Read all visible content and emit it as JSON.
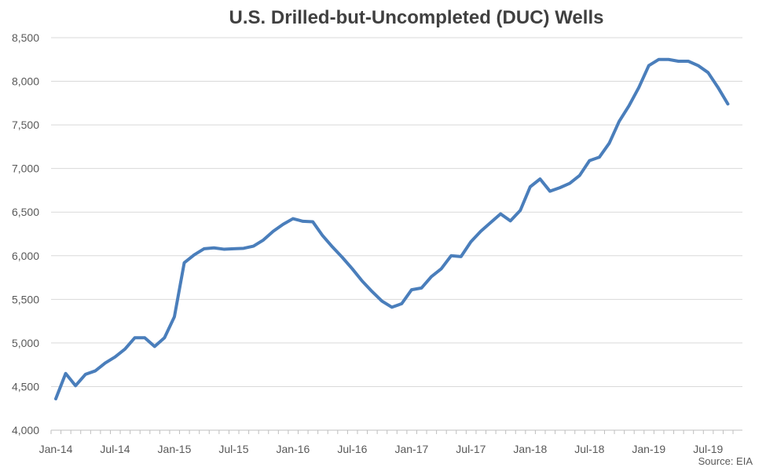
{
  "chart_data": {
    "type": "line",
    "title": "U.S. Drilled-but-Uncompleted (DUC) Wells",
    "xlabel": "",
    "ylabel": "",
    "ylim": [
      4000,
      8500
    ],
    "y_ticks": [
      4000,
      4500,
      5000,
      5500,
      6000,
      6500,
      7000,
      7500,
      8000,
      8500
    ],
    "y_tick_labels": [
      "4,000",
      "4,500",
      "5,000",
      "5,500",
      "6,000",
      "6,500",
      "7,000",
      "7,500",
      "8,000",
      "8,500"
    ],
    "x_tick_labels": [
      "Jan-14",
      "Jul-14",
      "Jan-15",
      "Jul-15",
      "Jan-16",
      "Jul-16",
      "Jan-17",
      "Jul-17",
      "Jan-18",
      "Jul-18",
      "Jan-19",
      "Jul-19"
    ],
    "x_start": "Jan-14",
    "x_end": "Sep-19",
    "grid": true,
    "legend": "none",
    "series_color": "#4a7ebb",
    "source": "Source: EIA",
    "series": [
      {
        "values": [
          4360,
          4650,
          4510,
          4640,
          4680,
          4770,
          4840,
          4930,
          5060,
          5060,
          4960,
          5060,
          5300,
          5920,
          6010,
          6080,
          6090,
          6075,
          6080,
          6085,
          6110,
          6180,
          6280,
          6360,
          6425,
          6395,
          6390,
          6230,
          6100,
          5980,
          5850,
          5710,
          5590,
          5480,
          5410,
          5450,
          5610,
          5630,
          5760,
          5850,
          6000,
          5990,
          6160,
          6280,
          6380,
          6480,
          6400,
          6520,
          6790,
          6880,
          6740,
          6780,
          6830,
          6920,
          7090,
          7130,
          7290,
          7540,
          7720,
          7930,
          8180,
          8250,
          8250,
          8230,
          8230,
          8180,
          8100,
          7930,
          7740
        ]
      }
    ]
  }
}
